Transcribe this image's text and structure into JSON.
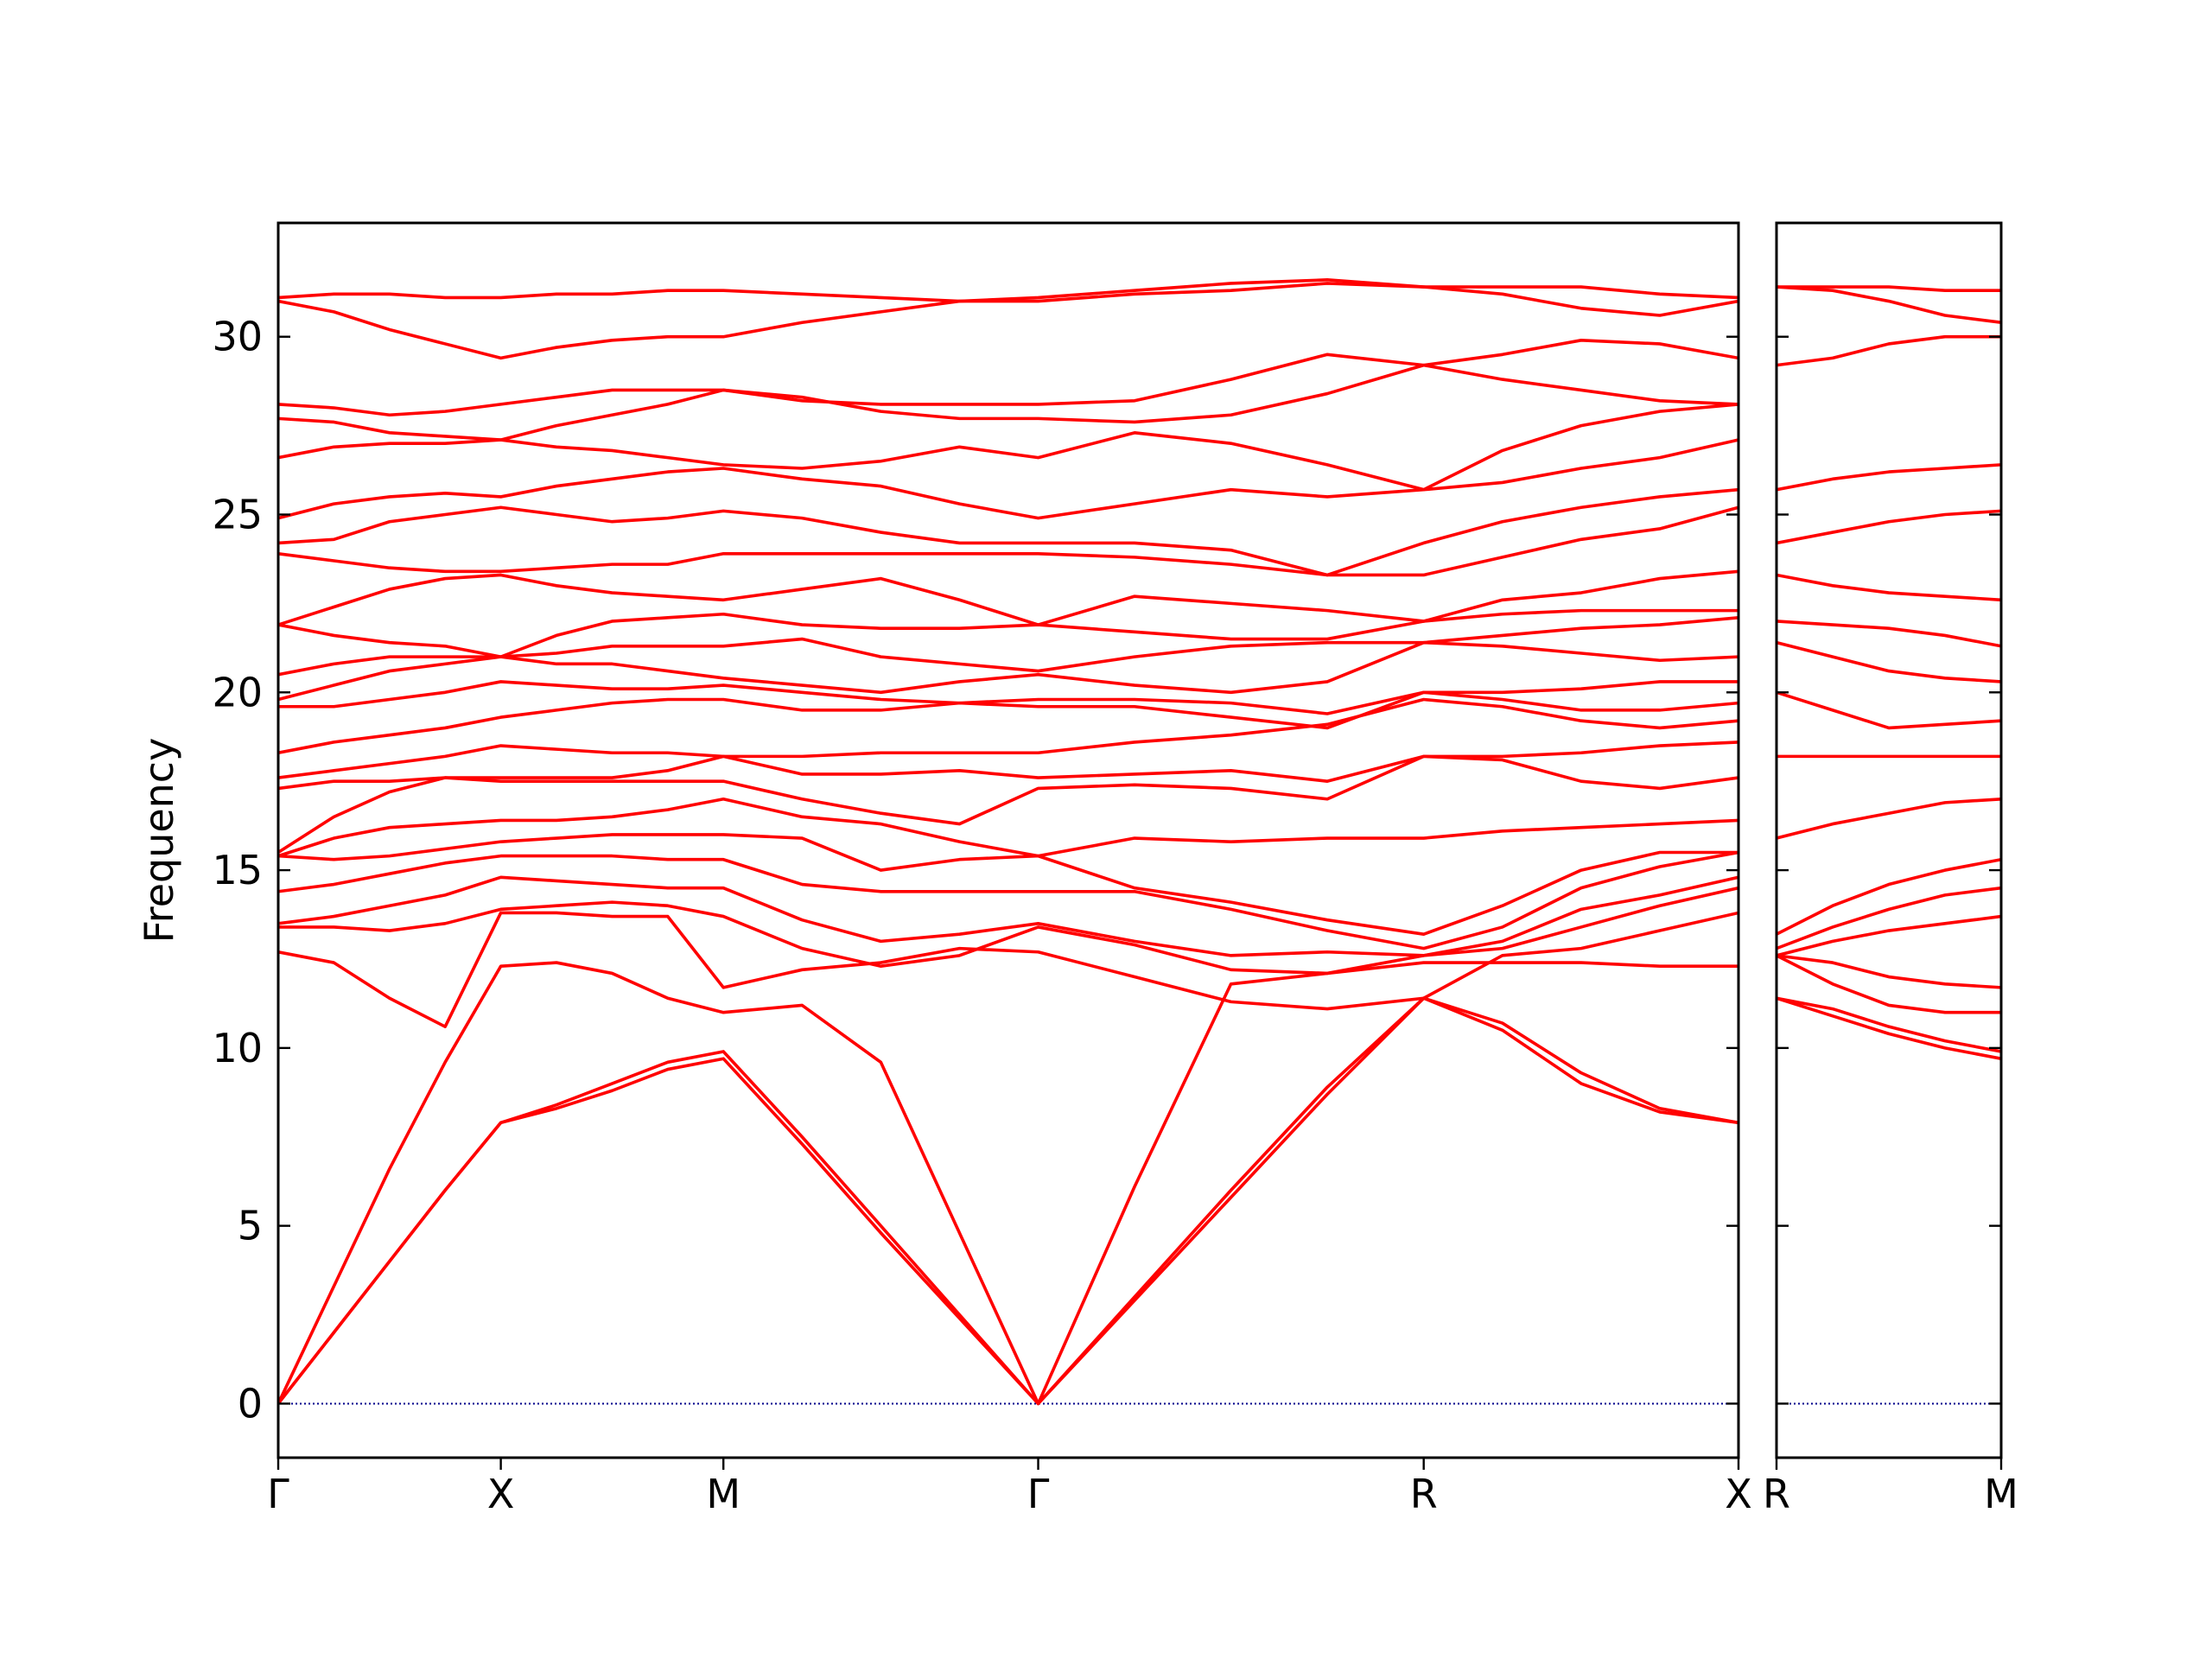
{
  "chart_data": [
    {
      "type": "line",
      "ylabel": "Frequency",
      "color": "#ff0000",
      "ylim": [
        -1.52,
        33.2
      ],
      "yticks": [
        0,
        5,
        10,
        15,
        20,
        25,
        30
      ],
      "tick_labels": true,
      "xlim": [
        0,
        3.2802
      ],
      "xticks": [
        {
          "value": 0,
          "label": "Γ"
        },
        {
          "value": 0.5,
          "label": "X"
        },
        {
          "value": 1.0,
          "label": "M"
        },
        {
          "value": 1.7071,
          "label": "Γ"
        },
        {
          "value": 2.5731,
          "label": "R"
        },
        {
          "value": 3.2802,
          "label": "X"
        }
      ],
      "hline": {
        "value": 0,
        "color": "#00008b"
      },
      "x": [
        0,
        0.125,
        0.25,
        0.375,
        0.5,
        0.625,
        0.75,
        0.875,
        1.0,
        1.1768,
        1.3536,
        1.5303,
        1.7071,
        1.9236,
        2.1401,
        2.3566,
        2.5731,
        2.7499,
        2.9267,
        3.1034,
        3.2802
      ],
      "series": [
        {
          "values": [
            0,
            2.0,
            4.0,
            6.0,
            7.9,
            8.3,
            8.8,
            9.4,
            9.7,
            7.3,
            4.8,
            2.4,
            0,
            2.9,
            5.8,
            8.7,
            11.4,
            10.5,
            9.0,
            8.2,
            7.9
          ]
        },
        {
          "values": [
            0,
            2.0,
            4.0,
            6.0,
            7.9,
            8.4,
            9.0,
            9.6,
            9.9,
            7.5,
            5.0,
            2.5,
            0,
            3.0,
            6.0,
            8.9,
            11.4,
            10.7,
            9.3,
            8.3,
            7.9
          ]
        },
        {
          "values": [
            0,
            3.3,
            6.6,
            9.6,
            12.3,
            12.4,
            12.1,
            11.4,
            11.0,
            11.2,
            9.6,
            4.8,
            0,
            6.1,
            11.8,
            12.1,
            12.4,
            12.4,
            12.4,
            12.3,
            12.3
          ]
        },
        {
          "values": [
            12.7,
            12.4,
            11.4,
            10.6,
            13.8,
            13.8,
            13.7,
            13.7,
            11.7,
            12.2,
            12.4,
            12.8,
            12.7,
            12.0,
            11.3,
            11.1,
            11.4,
            12.6,
            12.8,
            13.3,
            13.8
          ]
        },
        {
          "values": [
            13.4,
            13.4,
            13.3,
            13.5,
            13.9,
            14.0,
            14.1,
            14.0,
            13.7,
            12.8,
            12.3,
            12.6,
            13.4,
            12.9,
            12.2,
            12.1,
            12.6,
            12.8,
            13.4,
            14.0,
            14.5
          ]
        },
        {
          "values": [
            13.5,
            13.7,
            14.0,
            14.3,
            14.8,
            14.7,
            14.6,
            14.5,
            14.5,
            13.6,
            13.0,
            13.2,
            13.5,
            13.0,
            12.6,
            12.7,
            12.6,
            13.0,
            13.9,
            14.3,
            14.8
          ]
        },
        {
          "values": [
            14.4,
            14.6,
            14.9,
            15.2,
            15.4,
            15.4,
            15.4,
            15.3,
            15.3,
            14.6,
            14.4,
            14.4,
            14.4,
            14.4,
            13.9,
            13.3,
            12.8,
            13.4,
            14.5,
            15.1,
            15.5
          ]
        },
        {
          "values": [
            15.4,
            15.3,
            15.4,
            15.6,
            15.8,
            15.9,
            16.0,
            16.0,
            16.0,
            15.9,
            15.0,
            15.3,
            15.4,
            14.5,
            14.1,
            13.6,
            13.2,
            14.0,
            15.0,
            15.5,
            15.5
          ]
        },
        {
          "values": [
            15.4,
            15.9,
            16.2,
            16.3,
            16.4,
            16.4,
            16.5,
            16.7,
            17.0,
            16.5,
            16.3,
            15.8,
            15.4,
            15.9,
            15.8,
            15.9,
            15.9,
            16.1,
            16.2,
            16.3,
            16.4
          ]
        },
        {
          "values": [
            15.5,
            16.5,
            17.2,
            17.6,
            17.5,
            17.5,
            17.5,
            17.5,
            17.5,
            17.0,
            16.6,
            16.3,
            17.3,
            17.4,
            17.3,
            17.0,
            18.2,
            18.1,
            17.5,
            17.3,
            17.6
          ]
        },
        {
          "values": [
            17.3,
            17.5,
            17.5,
            17.6,
            17.6,
            17.6,
            17.6,
            17.8,
            18.2,
            17.7,
            17.7,
            17.8,
            17.6,
            17.7,
            17.8,
            17.5,
            18.2,
            18.2,
            18.3,
            18.5,
            18.6
          ]
        },
        {
          "values": [
            17.6,
            17.8,
            18.0,
            18.2,
            18.5,
            18.4,
            18.3,
            18.3,
            18.2,
            18.2,
            18.3,
            18.3,
            18.3,
            18.6,
            18.8,
            19.1,
            19.8,
            19.6,
            19.2,
            19.0,
            19.2
          ]
        },
        {
          "values": [
            18.3,
            18.6,
            18.8,
            19.0,
            19.3,
            19.5,
            19.7,
            19.8,
            19.8,
            19.5,
            19.5,
            19.7,
            19.6,
            19.6,
            19.3,
            19.0,
            20.0,
            19.8,
            19.5,
            19.5,
            19.7
          ]
        },
        {
          "values": [
            19.6,
            19.6,
            19.8,
            20.0,
            20.3,
            20.2,
            20.1,
            20.1,
            20.2,
            20.0,
            19.8,
            19.7,
            19.8,
            19.8,
            19.7,
            19.4,
            20.0,
            20.0,
            20.1,
            20.3,
            20.3
          ]
        },
        {
          "values": [
            19.8,
            20.2,
            20.6,
            20.8,
            21.0,
            20.8,
            20.8,
            20.6,
            20.4,
            20.2,
            20.0,
            20.3,
            20.5,
            20.2,
            20.0,
            20.3,
            21.4,
            21.3,
            21.1,
            20.9,
            21.0
          ]
        },
        {
          "values": [
            20.5,
            20.8,
            21.0,
            21.0,
            21.0,
            21.1,
            21.3,
            21.3,
            21.3,
            21.5,
            21.0,
            20.8,
            20.6,
            21.0,
            21.3,
            21.4,
            21.4,
            21.6,
            21.8,
            21.9,
            22.1
          ]
        },
        {
          "values": [
            21.9,
            21.6,
            21.4,
            21.3,
            21.0,
            21.6,
            22.0,
            22.1,
            22.2,
            21.9,
            21.8,
            21.8,
            21.9,
            21.7,
            21.5,
            21.5,
            22.0,
            22.2,
            22.3,
            22.3,
            22.3
          ]
        },
        {
          "values": [
            21.9,
            22.4,
            22.9,
            23.2,
            23.3,
            23.0,
            22.8,
            22.7,
            22.6,
            22.9,
            23.2,
            22.6,
            21.9,
            22.7,
            22.5,
            22.3,
            22.0,
            22.6,
            22.8,
            23.2,
            23.4
          ]
        },
        {
          "values": [
            23.9,
            23.7,
            23.5,
            23.4,
            23.4,
            23.5,
            23.6,
            23.6,
            23.9,
            23.9,
            23.9,
            23.9,
            23.9,
            23.8,
            23.6,
            23.3,
            23.3,
            23.8,
            24.3,
            24.6,
            25.2
          ]
        },
        {
          "values": [
            24.2,
            24.3,
            24.8,
            25.0,
            25.2,
            25.0,
            24.8,
            24.9,
            25.1,
            24.9,
            24.5,
            24.2,
            24.2,
            24.2,
            24.0,
            23.3,
            24.2,
            24.8,
            25.2,
            25.5,
            25.7
          ]
        },
        {
          "values": [
            24.9,
            25.3,
            25.5,
            25.6,
            25.5,
            25.8,
            26.0,
            26.2,
            26.3,
            26.0,
            25.8,
            25.3,
            24.9,
            25.3,
            25.7,
            25.5,
            25.7,
            25.9,
            26.3,
            26.6,
            27.1
          ]
        },
        {
          "values": [
            26.6,
            26.9,
            27.0,
            27.0,
            27.1,
            26.9,
            26.8,
            26.6,
            26.4,
            26.3,
            26.5,
            26.9,
            26.6,
            27.3,
            27.0,
            26.4,
            25.7,
            26.8,
            27.5,
            27.9,
            28.1
          ]
        },
        {
          "values": [
            27.7,
            27.6,
            27.3,
            27.2,
            27.1,
            27.5,
            27.8,
            28.1,
            28.5,
            28.3,
            27.9,
            27.7,
            27.7,
            27.6,
            27.8,
            28.4,
            29.2,
            28.8,
            28.5,
            28.2,
            28.1
          ]
        },
        {
          "values": [
            28.1,
            28.0,
            27.8,
            27.9,
            28.1,
            28.3,
            28.5,
            28.5,
            28.5,
            28.2,
            28.1,
            28.1,
            28.1,
            28.2,
            28.8,
            29.5,
            29.2,
            29.5,
            29.9,
            29.8,
            29.4
          ]
        },
        {
          "values": [
            31.0,
            30.7,
            30.2,
            29.8,
            29.4,
            29.7,
            29.9,
            30.0,
            30.0,
            30.4,
            30.7,
            31.0,
            31.0,
            31.2,
            31.3,
            31.5,
            31.4,
            31.2,
            30.8,
            30.6,
            31.0
          ]
        },
        {
          "values": [
            31.1,
            31.2,
            31.2,
            31.1,
            31.1,
            31.2,
            31.2,
            31.3,
            31.3,
            31.2,
            31.1,
            31.0,
            31.1,
            31.3,
            31.5,
            31.6,
            31.4,
            31.4,
            31.4,
            31.2,
            31.1
          ]
        }
      ]
    },
    {
      "type": "line",
      "color": "#ff0000",
      "ylim": [
        -1.52,
        33.2
      ],
      "yticks": [
        0,
        5,
        10,
        15,
        20,
        25,
        30
      ],
      "tick_labels": false,
      "xlim": [
        0,
        0.5
      ],
      "xticks": [
        {
          "value": 0,
          "label": "R"
        },
        {
          "value": 0.5,
          "label": "M"
        }
      ],
      "hline": {
        "value": 0,
        "color": "#00008b"
      },
      "x": [
        0,
        0.125,
        0.25,
        0.375,
        0.5
      ],
      "series": [
        {
          "values": [
            11.4,
            10.9,
            10.4,
            10.0,
            9.7
          ]
        },
        {
          "values": [
            11.4,
            11.1,
            10.6,
            10.2,
            9.9
          ]
        },
        {
          "values": [
            12.6,
            11.8,
            11.2,
            11.0,
            11.0
          ]
        },
        {
          "values": [
            12.6,
            12.4,
            12.0,
            11.8,
            11.7
          ]
        },
        {
          "values": [
            12.6,
            13.0,
            13.3,
            13.5,
            13.7
          ]
        },
        {
          "values": [
            12.8,
            13.4,
            13.9,
            14.3,
            14.5
          ]
        },
        {
          "values": [
            13.2,
            14.0,
            14.6,
            15.0,
            15.3
          ]
        },
        {
          "values": [
            15.9,
            16.3,
            16.6,
            16.9,
            17.0
          ]
        },
        {
          "values": [
            18.2,
            18.2,
            18.2,
            18.2,
            18.2
          ]
        },
        {
          "values": [
            20.0,
            19.5,
            19.0,
            19.1,
            19.2
          ]
        },
        {
          "values": [
            21.4,
            21.0,
            20.6,
            20.4,
            20.3
          ]
        },
        {
          "values": [
            22.0,
            21.9,
            21.8,
            21.6,
            21.3
          ]
        },
        {
          "values": [
            23.3,
            23.0,
            22.8,
            22.7,
            22.6
          ]
        },
        {
          "values": [
            24.2,
            24.5,
            24.8,
            25.0,
            25.1
          ]
        },
        {
          "values": [
            25.7,
            26.0,
            26.2,
            26.3,
            26.4
          ]
        },
        {
          "values": [
            29.2,
            29.4,
            29.8,
            30.0,
            30.0
          ]
        },
        {
          "values": [
            31.4,
            31.3,
            31.0,
            30.6,
            30.4
          ]
        },
        {
          "values": [
            31.4,
            31.4,
            31.4,
            31.3,
            31.3
          ]
        }
      ]
    }
  ]
}
